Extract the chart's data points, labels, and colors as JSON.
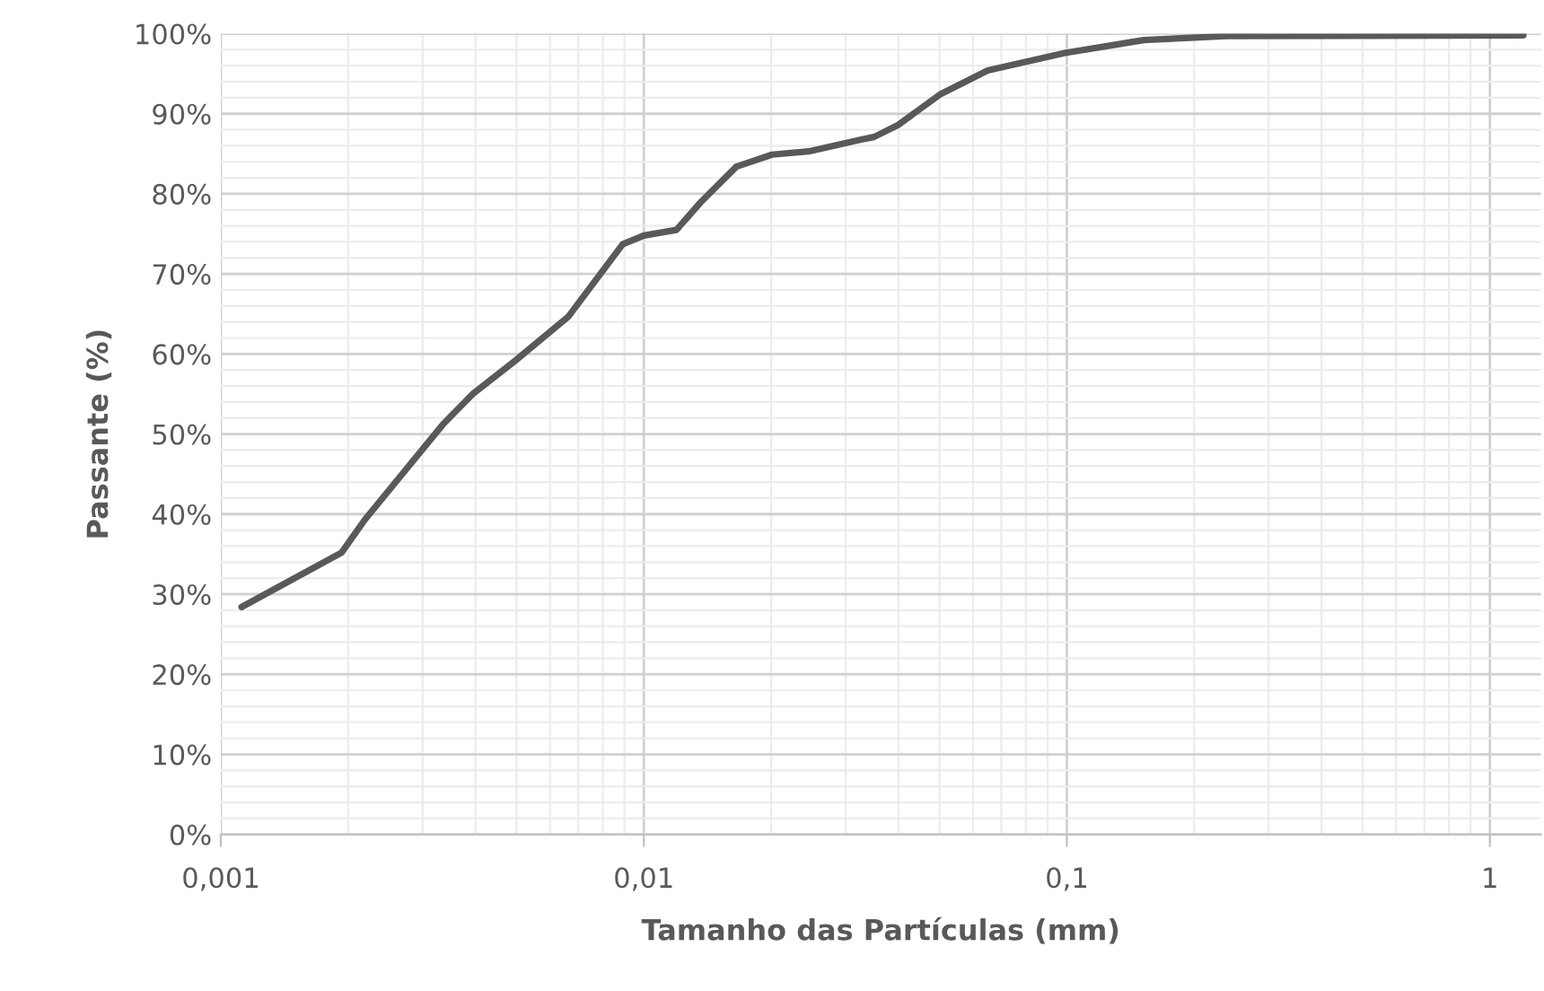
{
  "chart_data": {
    "type": "line",
    "xlabel": "Tamanho das Partículas (mm)",
    "ylabel": "Passante (%)",
    "log": "x",
    "grid": true,
    "marker": "none",
    "line_style": "solid",
    "xlim": [
      0.001,
      1.32
    ],
    "xticks": [
      {
        "value": 0.001,
        "label": "0,001"
      },
      {
        "value": 0.01,
        "label": "0,01"
      },
      {
        "value": 0.1,
        "label": "0,1"
      },
      {
        "value": 1,
        "label": "1"
      }
    ],
    "ylim": [
      0,
      100
    ],
    "yticks": [
      {
        "value": 0,
        "label": "0%"
      },
      {
        "value": 10,
        "label": "10%"
      },
      {
        "value": 20,
        "label": "20%"
      },
      {
        "value": 30,
        "label": "30%"
      },
      {
        "value": 40,
        "label": "40%"
      },
      {
        "value": 50,
        "label": "50%"
      },
      {
        "value": 60,
        "label": "60%"
      },
      {
        "value": 70,
        "label": "70%"
      },
      {
        "value": 80,
        "label": "80%"
      },
      {
        "value": 90,
        "label": "90%"
      },
      {
        "value": 100,
        "label": "100%"
      }
    ],
    "series": [
      {
        "color": "#595959",
        "x": [
          0.00112,
          0.00193,
          0.00219,
          0.00335,
          0.00394,
          0.00495,
          0.00664,
          0.00891,
          0.01,
          0.01194,
          0.0136,
          0.01655,
          0.0201,
          0.0245,
          0.0328,
          0.035,
          0.0399,
          0.0501,
          0.065,
          0.0989,
          0.152,
          0.239,
          1.2
        ],
        "values": [
          28.4,
          35.2,
          39.3,
          51.2,
          55.0,
          59.1,
          64.7,
          73.7,
          74.8,
          75.5,
          78.9,
          83.4,
          84.9,
          85.3,
          86.8,
          87.1,
          88.6,
          92.4,
          95.4,
          97.6,
          99.2,
          99.7,
          99.8
        ]
      }
    ]
  }
}
